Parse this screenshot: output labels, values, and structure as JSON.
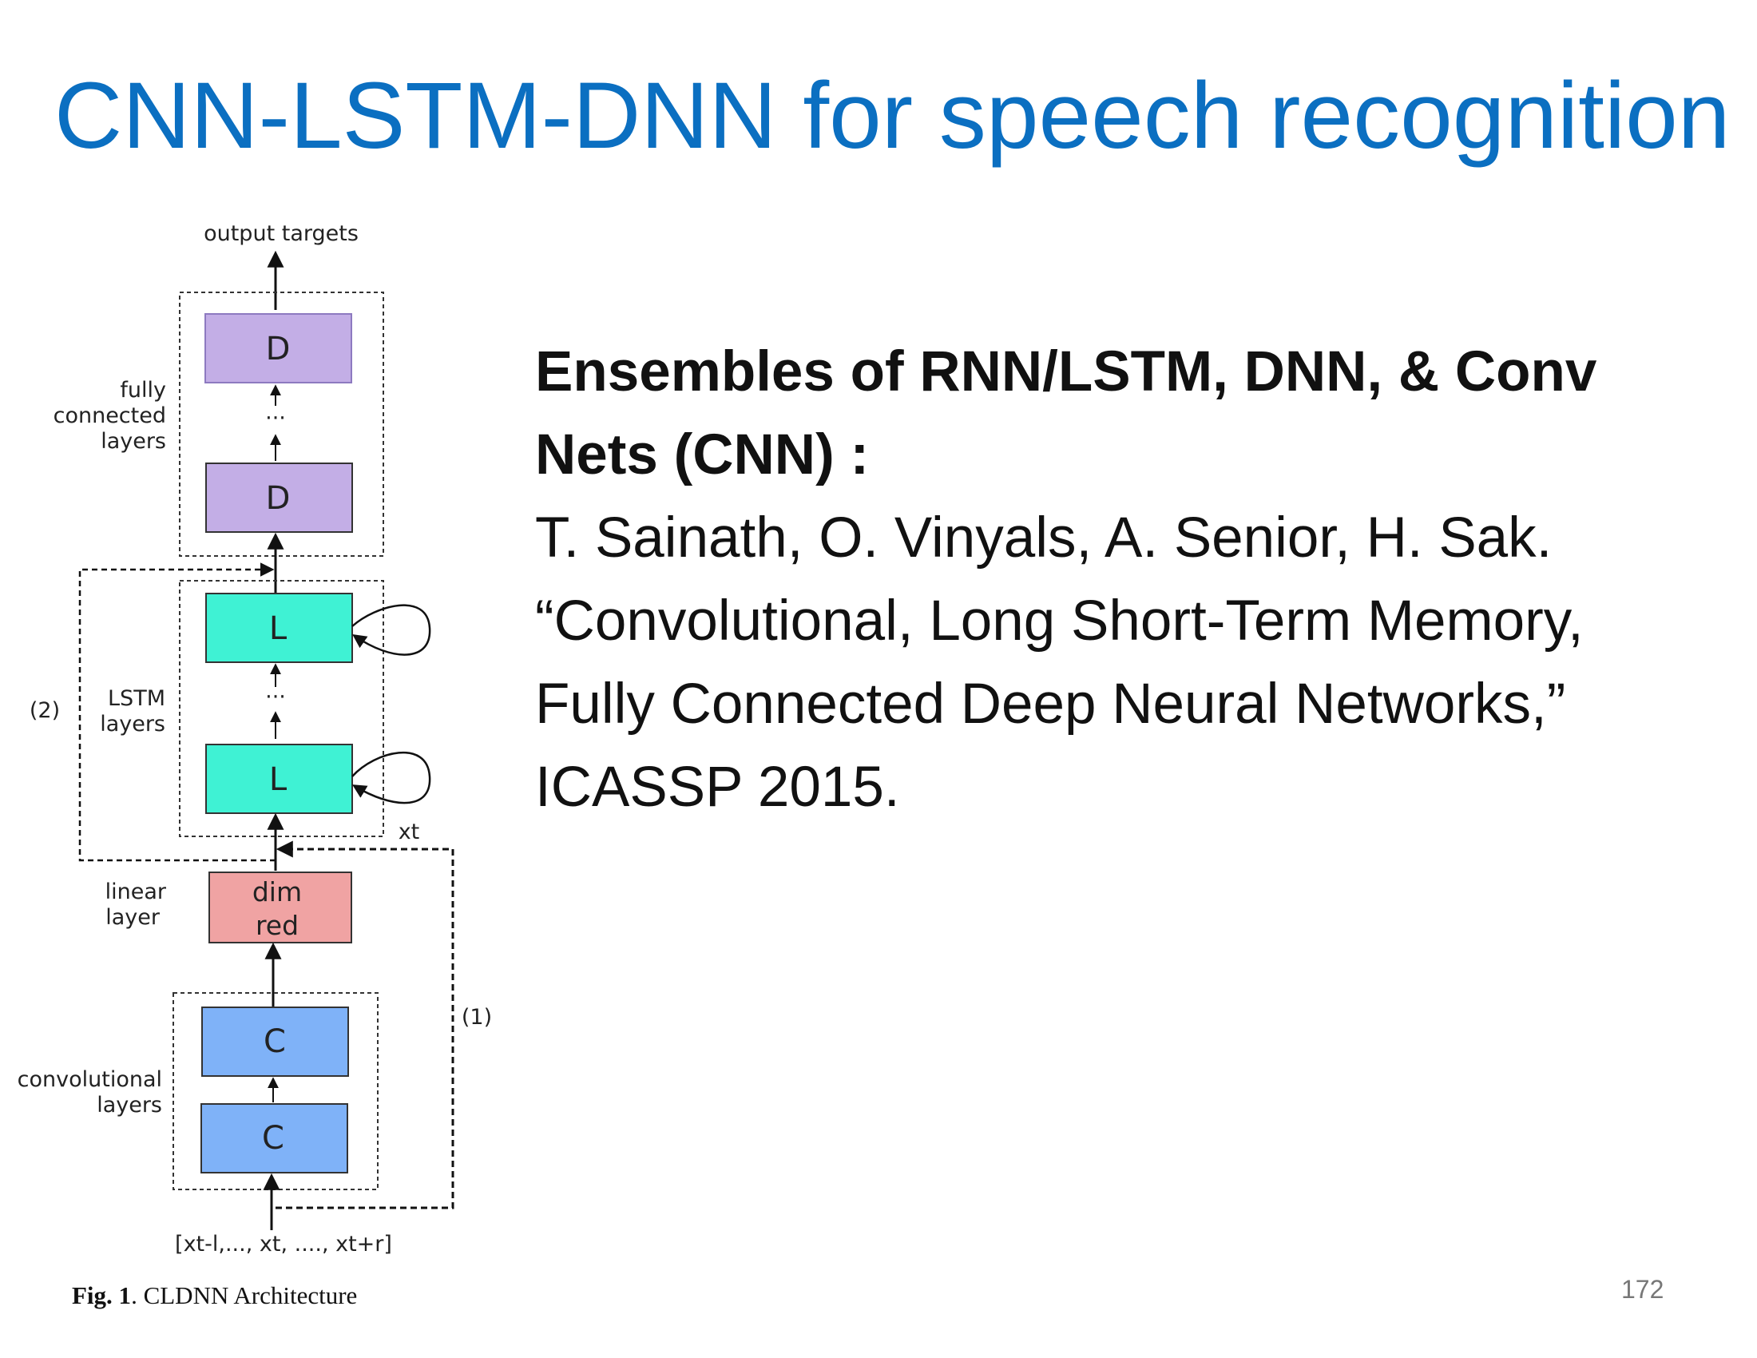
{
  "title": "CNN-LSTM-DNN for speech recognition",
  "text": {
    "heading_line1": "Ensembles of RNN/LSTM, DNN, & Conv",
    "heading_line2": "Nets (CNN) :",
    "ref_line1": "T. Sainath,  O. Vinyals, A. Senior, H. Sak.",
    "ref_line2": "“Convolutional, Long Short-Term Memory,",
    "ref_line3": "Fully Connected Deep Neural Networks,”",
    "ref_line4": "ICASSP 2015."
  },
  "page_number": "172",
  "diagram": {
    "output_label": "output targets",
    "fc_label": [
      "fully",
      "connected",
      "layers"
    ],
    "lstm_label": [
      "LSTM",
      "layers"
    ],
    "linear_label": [
      "linear",
      "layer"
    ],
    "conv_label": [
      "convolutional",
      "layers"
    ],
    "box_d": "D",
    "box_l": "L",
    "box_c": "C",
    "dimred": [
      "dim",
      "red"
    ],
    "ellipsis": "···",
    "path2": "(2)",
    "path1": "(1)",
    "xt": "xt",
    "input": "[xt-l,..., xt, ...., xt+r]",
    "caption_fig": "Fig. 1",
    "caption_text": ". CLDNN Architecture"
  },
  "colors": {
    "title": "#0b6fc1",
    "dense": "#c3aee6",
    "lstm": "#3ff2d4",
    "dimred": "#f0a3a3",
    "conv": "#7fb2f8"
  }
}
